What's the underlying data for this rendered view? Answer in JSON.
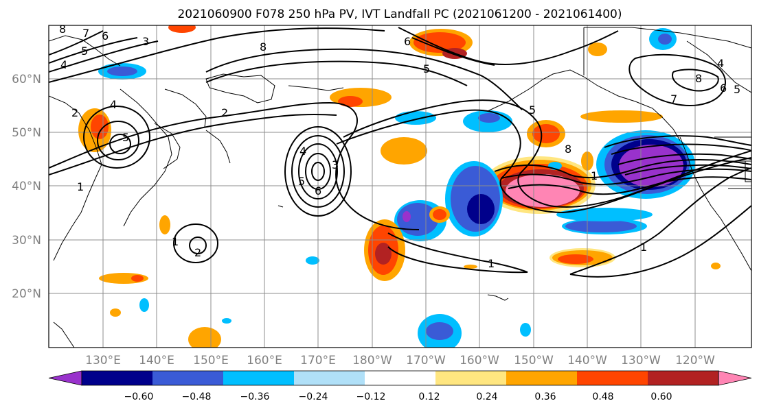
{
  "figure": {
    "title": "2021060900 F078 250 hPa PV, IVT Landfall PC (2021061200 - 2021061400)"
  },
  "map": {
    "lat_labels": [
      "60°N",
      "50°N",
      "40°N",
      "30°N",
      "20°N"
    ],
    "lon_labels": [
      "130°E",
      "140°E",
      "150°E",
      "160°E",
      "170°E",
      "180°W",
      "170°W",
      "160°W",
      "150°W",
      "140°W",
      "130°W",
      "120°W"
    ],
    "pv_contour_labels": [
      "8",
      "7",
      "6",
      "5",
      "4",
      "3",
      "8",
      "6",
      "5",
      "2",
      "2",
      "4",
      "5",
      "1",
      "4",
      "3",
      "5",
      "6",
      "2",
      "1",
      "5",
      "8",
      "1",
      "7",
      "8",
      "6",
      "5",
      "4",
      "1",
      "1"
    ],
    "land_outline_color": "#000000",
    "grid_color": "#808080"
  },
  "colorbar": {
    "ticks": [
      "−0.60",
      "−0.48",
      "−0.36",
      "−0.24",
      "−0.12",
      "0.12",
      "0.24",
      "0.36",
      "0.48",
      "0.60"
    ],
    "colors": [
      "#9932CC",
      "#00008B",
      "#3A5BD6",
      "#00BFFF",
      "#B0E0F8",
      "#FFFFFF",
      "#FFE680",
      "#FFA500",
      "#FF4500",
      "#B22222",
      "#FF85B4"
    ]
  }
}
